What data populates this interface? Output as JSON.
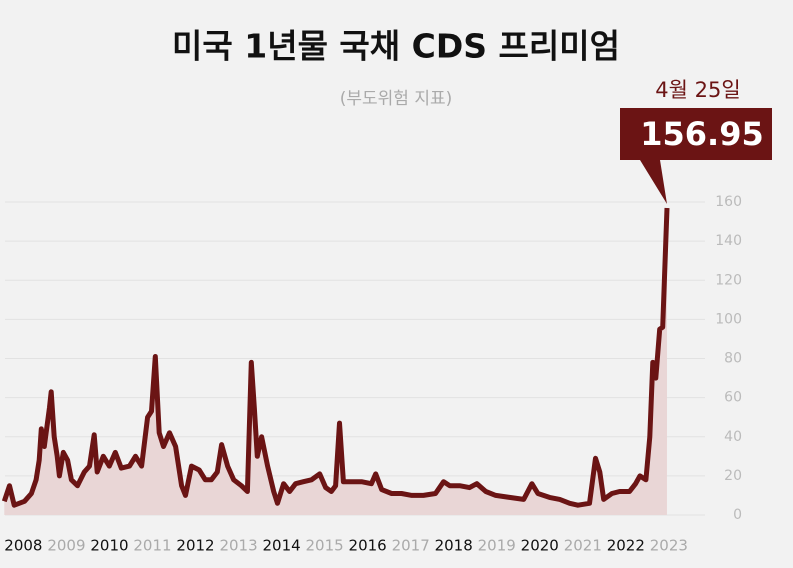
{
  "chart_data": {
    "type": "line",
    "title": "미국 1년물 국채 CDS 프리미엄",
    "subtitle": "(부도위험 지표)",
    "annotation": "4월 25일",
    "x": [
      2008.0,
      2008.12,
      2008.23,
      2008.47,
      2008.63,
      2008.74,
      2008.81,
      2008.86,
      2008.93,
      2009.05,
      2009.09,
      2009.16,
      2009.23,
      2009.28,
      2009.37,
      2009.47,
      2009.56,
      2009.7,
      2009.86,
      2009.98,
      2010.09,
      2010.16,
      2010.3,
      2010.44,
      2010.58,
      2010.72,
      2010.91,
      2011.05,
      2011.19,
      2011.33,
      2011.42,
      2011.51,
      2011.6,
      2011.7,
      2011.84,
      2011.98,
      2012.12,
      2012.21,
      2012.35,
      2012.53,
      2012.67,
      2012.81,
      2012.95,
      2013.05,
      2013.19,
      2013.33,
      2013.51,
      2013.65,
      2013.74,
      2013.81,
      2013.88,
      2013.98,
      2014.12,
      2014.26,
      2014.35,
      2014.49,
      2014.63,
      2014.77,
      2014.95,
      2015.14,
      2015.33,
      2015.47,
      2015.6,
      2015.7,
      2015.79,
      2015.88,
      2016.07,
      2016.3,
      2016.53,
      2016.63,
      2016.77,
      2017.0,
      2017.23,
      2017.47,
      2017.74,
      2018.02,
      2018.21,
      2018.35,
      2018.58,
      2018.81,
      2018.98,
      2019.19,
      2019.42,
      2019.74,
      2020.07,
      2020.26,
      2020.4,
      2020.67,
      2020.91,
      2021.14,
      2021.33,
      2021.6,
      2021.74,
      2021.84,
      2021.93,
      2022.12,
      2022.3,
      2022.53,
      2022.67,
      2022.77,
      2022.91,
      2023.0,
      2023.07,
      2023.14,
      2023.23,
      2023.3,
      2023.4
    ],
    "series": [
      {
        "name": "CDS",
        "color": "#6b1414",
        "fill": "#e9d6d6",
        "values": [
          7,
          15,
          5,
          7,
          11,
          18,
          28,
          44,
          35,
          55,
          63,
          40,
          30,
          20,
          32,
          28,
          18,
          15,
          22,
          25,
          41,
          22,
          30,
          25,
          32,
          24,
          25,
          30,
          25,
          50,
          53,
          81,
          42,
          35,
          42,
          35,
          15,
          10,
          25,
          23,
          18,
          18,
          22,
          36,
          25,
          18,
          15,
          12,
          78,
          55,
          30,
          40,
          25,
          12,
          6,
          16,
          12,
          16,
          17,
          18,
          21,
          14,
          12,
          15,
          47,
          17,
          17,
          17,
          16,
          21,
          13,
          11,
          11,
          10,
          10,
          11,
          17,
          15,
          15,
          14,
          16,
          12,
          10,
          9,
          8,
          16,
          11,
          9,
          8,
          6,
          5,
          6,
          29,
          22,
          8,
          11,
          12,
          12,
          16,
          20,
          18,
          40,
          78,
          70,
          95,
          96,
          156.95
        ]
      }
    ],
    "xlim": [
      2007.9,
      2024.4
    ],
    "xticks": [
      2008,
      2009,
      2010,
      2011,
      2012,
      2013,
      2014,
      2015,
      2016,
      2017,
      2018,
      2019,
      2020,
      2021,
      2022,
      2023
    ],
    "ylim": [
      0,
      160
    ],
    "yticks": [
      0,
      20,
      40,
      60,
      80,
      100,
      120,
      140,
      160
    ],
    "grid": true
  }
}
